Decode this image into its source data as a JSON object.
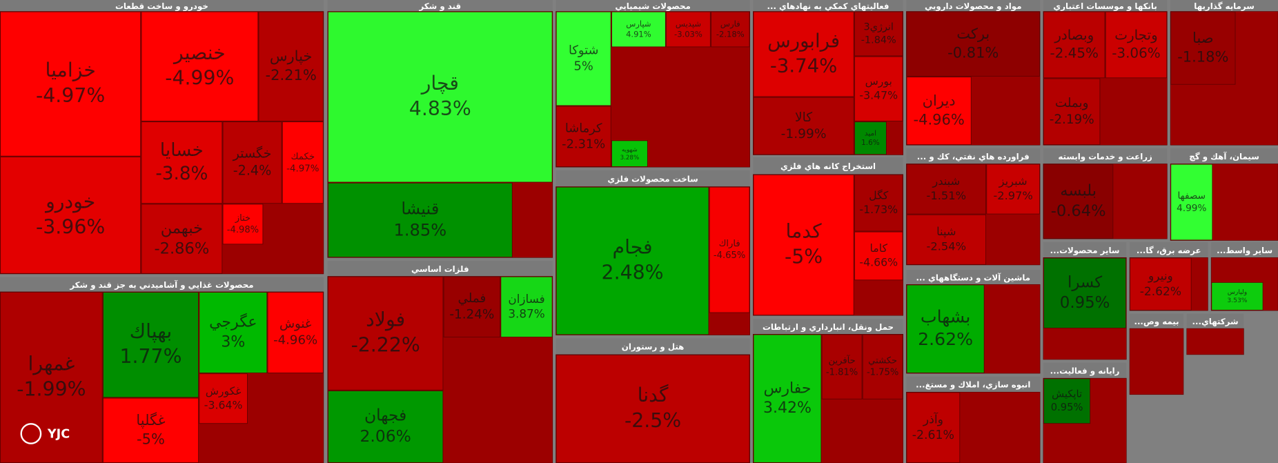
{
  "chart_data": {
    "type": "treemap",
    "watermark": "YJC",
    "groups": [
      {
        "name": "خودرو و ساخت قطعات",
        "labels": [
          "خزاميا",
          "خودرو",
          "خنصير",
          "خپارس",
          "خسايا",
          "خگستر",
          "خكمك",
          "خبهمن",
          "ختاز"
        ],
        "values": [
          -4.97,
          -3.96,
          -4.99,
          -2.21,
          -3.8,
          -2.4,
          -4.97,
          -2.86,
          -4.98
        ],
        "value_labels": [
          "-4.97%",
          "-3.96%",
          "-4.99%",
          "-2.21%",
          "-3.8%",
          "-2.4%",
          "-4.97%",
          "-2.86%",
          "-4.98%"
        ]
      },
      {
        "name": "محصولات غذايي و آشاميدني به جز قند و شكر",
        "labels": [
          "غمهرا",
          "بهپاك",
          "عگرجي",
          "غنوش",
          "غگلپا",
          "غكورش"
        ],
        "values": [
          -1.99,
          1.77,
          3,
          -4.96,
          -5,
          -3.64
        ],
        "value_labels": [
          "-1.99%",
          "1.77%",
          "3%",
          "-4.96%",
          "-5%",
          "-3.64%"
        ]
      },
      {
        "name": "قند و شكر",
        "labels": [
          "قچار",
          "قنيشا"
        ],
        "values": [
          4.83,
          1.85
        ],
        "value_labels": [
          "4.83%",
          "1.85%"
        ]
      },
      {
        "name": "فلزات اساسي",
        "labels": [
          "فولاد",
          "فجهان",
          "فملي",
          "فسازان"
        ],
        "values": [
          -2.22,
          2.06,
          -1.24,
          3.87
        ],
        "value_labels": [
          "-2.22%",
          "2.06%",
          "-1.24%",
          "3.87%"
        ]
      },
      {
        "name": "محصولات شيميايي",
        "labels": [
          "شتوكا",
          "شپارس",
          "شپديس",
          "فارس",
          "كرماشا",
          "شهويه"
        ],
        "values": [
          5,
          4.91,
          -3.03,
          -2.18,
          -2.31,
          3.28
        ],
        "value_labels": [
          "5%",
          "4.91%",
          "-3.03%",
          "-2.18%",
          "-2.31%",
          "3.28%"
        ]
      },
      {
        "name": "ساخت محصولات فلزي",
        "labels": [
          "فجام",
          "فاراك"
        ],
        "values": [
          2.48,
          -4.65
        ],
        "value_labels": [
          "2.48%",
          "-4.65%"
        ]
      },
      {
        "name": "هتل و رستوران",
        "labels": [
          "گدنا"
        ],
        "values": [
          -2.5
        ],
        "value_labels": [
          "-2.5%"
        ]
      },
      {
        "name": "... فعاليتهاي كمكي به نهادهاي",
        "labels": [
          "فرابورس",
          "انرژي3",
          "بورس",
          "كالا",
          "امید"
        ],
        "values": [
          -3.74,
          -1.84,
          -3.47,
          -1.99,
          1.6
        ],
        "value_labels": [
          "-3.74%",
          "-1.84%",
          "-3.47%",
          "-1.99%",
          "1.6%"
        ]
      },
      {
        "name": "استخراج كانه هاي فلزي",
        "labels": [
          "كدما",
          "كگل",
          "كاما"
        ],
        "values": [
          -5,
          -1.73,
          -4.66
        ],
        "value_labels": [
          "-5%",
          "-1.73%",
          "-4.66%"
        ]
      },
      {
        "name": "حمل ونقل، انبارداري و ارتباطات",
        "labels": [
          "حفارس",
          "حآفرين",
          "حكشتي"
        ],
        "values": [
          3.42,
          -1.81,
          -1.75
        ],
        "value_labels": [
          "3.42%",
          "-1.81%",
          "-1.75%"
        ]
      },
      {
        "name": "مواد و محصولات دارويي",
        "labels": [
          "بركت",
          "ديران"
        ],
        "values": [
          -0.81,
          -4.96
        ],
        "value_labels": [
          "-0.81%",
          "-4.96%"
        ]
      },
      {
        "name": "... فراورده هاي نفتي، كك و",
        "labels": [
          "شبندر",
          "شبريز",
          "شپنا"
        ],
        "values": [
          -1.51,
          -2.97,
          -2.54
        ],
        "value_labels": [
          "-1.51%",
          "-2.97%",
          "-2.54%"
        ]
      },
      {
        "name": "... ماشين آلات و دستگاههاي",
        "labels": [
          "بشهاب"
        ],
        "values": [
          2.62
        ],
        "value_labels": [
          "2.62%"
        ]
      },
      {
        "name": "...انبوه سازي، املاك و مستغ",
        "labels": [
          "وآذر"
        ],
        "values": [
          -2.61
        ],
        "value_labels": [
          "-2.61%"
        ]
      },
      {
        "name": "بانكها و موسسات اعتباري",
        "labels": [
          "وبصادر",
          "وتجارت",
          "وبملت"
        ],
        "values": [
          -2.45,
          -3.06,
          -2.19
        ],
        "value_labels": [
          "-2.45%",
          "-3.06%",
          "-2.19%"
        ]
      },
      {
        "name": "سرمايه گذاريها",
        "labels": [
          "صبا"
        ],
        "values": [
          -1.18
        ],
        "value_labels": [
          "-1.18%"
        ]
      },
      {
        "name": "زراعت و خدمات وابسته",
        "labels": [
          "بلبسه"
        ],
        "values": [
          -0.64
        ],
        "value_labels": [
          "-0.64%"
        ]
      },
      {
        "name": "سيمان، آهك و گچ",
        "labels": [
          "سصفها"
        ],
        "values": [
          4.99
        ],
        "value_labels": [
          "4.99%"
        ]
      },
      {
        "name": "...ساير محصولات",
        "labels": [
          "كسرا"
        ],
        "values": [
          0.95
        ],
        "value_labels": [
          "0.95%"
        ]
      },
      {
        "name": "...عرضه برق، گا",
        "labels": [
          "ونيرو"
        ],
        "values": [
          -2.62
        ],
        "value_labels": [
          "-2.62%"
        ]
      },
      {
        "name": "...ساير واسط",
        "labels": [
          "ولپارس"
        ],
        "values": [
          3.53
        ],
        "value_labels": [
          "3.53%"
        ]
      },
      {
        "name": "...رايانه و فعاليت",
        "labels": [
          "تاپكيش"
        ],
        "values": [
          0.95
        ],
        "value_labels": [
          "0.95%"
        ]
      },
      {
        "name": "...بيمه وص",
        "labels": [],
        "values": [],
        "value_labels": []
      },
      {
        "name": "...شركتهاي",
        "labels": [],
        "values": [],
        "value_labels": []
      }
    ]
  }
}
